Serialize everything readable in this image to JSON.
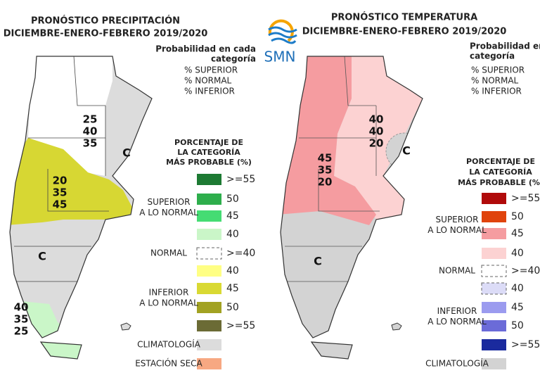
{
  "logo": "SMN",
  "precipitation": {
    "title": "PRONÓSTICO PRECIPITACIÓN",
    "subtitle": "DICIEMBRE-ENERO-FEBRERO 2019/2020",
    "probability_heading": [
      "Probabilidad en cada",
      "categoría"
    ],
    "probability_items": [
      "% SUPERIOR",
      "% NORMAL",
      "% INFERIOR"
    ],
    "legend_heading": [
      "PORCENTAJE DE",
      "LA CATEGORÍA",
      "MÁS PROBABLE (%)"
    ],
    "map_labels": [
      [
        "25",
        "40",
        "35"
      ],
      [
        "20",
        "35",
        "45"
      ],
      [
        "40",
        "35",
        "25"
      ]
    ],
    "climatology_marks": [
      "C",
      "C"
    ],
    "legend": [
      {
        "label": [
          "SUPERIOR",
          "A LO NORMAL"
        ],
        "items": [
          {
            "label": ">=55",
            "color": "#1d7a33"
          },
          {
            "label": "50",
            "color": "#2eae4c"
          },
          {
            "label": "45",
            "color": "#45dc73"
          },
          {
            "label": "40",
            "color": "#caf6c8"
          }
        ]
      },
      {
        "label": [
          "NORMAL"
        ],
        "items": [
          {
            "label": ">=40",
            "color": "#ffffff",
            "dashed": true
          }
        ]
      },
      {
        "label": [
          "INFERIOR",
          "A LO NORMAL"
        ],
        "items": [
          {
            "label": "40",
            "color": "#ffff84"
          },
          {
            "label": "45",
            "color": "#d9d933"
          },
          {
            "label": "50",
            "color": "#a2a222"
          },
          {
            "label": ">=55",
            "color": "#6b6b35"
          }
        ]
      },
      {
        "label": [
          "CLIMATOLOGÍA"
        ],
        "items": [
          {
            "color": "#dcdcdc"
          }
        ]
      },
      {
        "label": [
          "ESTACIÓN SECA"
        ],
        "items": [
          {
            "color": "#f7a882"
          }
        ]
      }
    ]
  },
  "temperature": {
    "title": "PRONÓSTICO TEMPERATURA",
    "subtitle": "DICIEMBRE-ENERO-FEBRERO 2019/2020",
    "probability_heading": [
      "Probabilidad en cada",
      "categoría"
    ],
    "probability_items": [
      "% SUPERIOR",
      "% NORMAL",
      "% INFERIOR"
    ],
    "legend_heading": [
      "PORCENTAJE DE",
      "LA CATEGORÍA",
      "MÁS PROBABLE (%)"
    ],
    "map_labels": [
      [
        "40",
        "40",
        "20"
      ],
      [
        "45",
        "35",
        "20"
      ]
    ],
    "climatology_marks": [
      "C",
      "C"
    ],
    "legend": [
      {
        "label": [
          "SUPERIOR",
          "A LO NORMAL"
        ],
        "items": [
          {
            "label": ">=55",
            "color": "#b00a0a"
          },
          {
            "label": "50",
            "color": "#e0430c"
          },
          {
            "label": "45",
            "color": "#f59ca0"
          },
          {
            "label": "40",
            "color": "#fcd2d2"
          }
        ]
      },
      {
        "label": [
          "NORMAL"
        ],
        "items": [
          {
            "label": ">=40",
            "color": "#ffffff",
            "dashed": true
          }
        ]
      },
      {
        "label": [
          "INFERIOR",
          "A LO NORMAL"
        ],
        "items": [
          {
            "label": "40",
            "color": "#dcdcf7",
            "dashed": true
          },
          {
            "label": "45",
            "color": "#9b9bef"
          },
          {
            "label": "50",
            "color": "#6b6bd8"
          },
          {
            "label": ">=55",
            "color": "#1a2a9e"
          }
        ]
      },
      {
        "label": [
          "CLIMATOLOGÍA"
        ],
        "items": [
          {
            "color": "#d3d3d3"
          }
        ]
      }
    ]
  }
}
